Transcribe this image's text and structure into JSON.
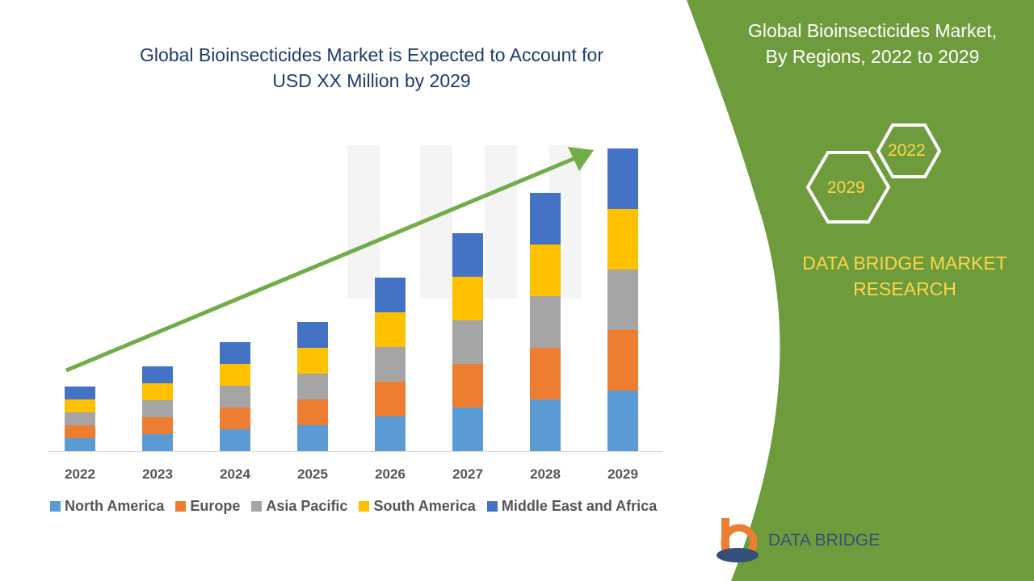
{
  "header": {
    "title_line1": "Global Bioinsecticides Market is Expected to Account for",
    "title_line2": "USD XX Million by 2029"
  },
  "side_panel": {
    "title_line1": "Global Bioinsecticides Market,",
    "title_line2": "By Regions, 2022 to 2029",
    "hex_left": "2029",
    "hex_right": "2022",
    "brand_line1": "DATA BRIDGE MARKET",
    "brand_line2": "RESEARCH",
    "logo_text": "DATA BRIDGE",
    "panel_color": "#6e9c3c"
  },
  "chart_data": {
    "type": "bar",
    "stacked": true,
    "title": "",
    "xlabel": "",
    "ylabel": "",
    "grid": false,
    "legend_placement": "bottom",
    "categories": [
      "2022",
      "2023",
      "2024",
      "2025",
      "2026",
      "2027",
      "2028",
      "2029"
    ],
    "series": [
      {
        "name": "North America",
        "color": "#5b9bd5",
        "values": [
          16,
          21,
          27,
          32,
          43,
          54,
          64,
          75
        ]
      },
      {
        "name": "Europe",
        "color": "#ed7d31",
        "values": [
          16,
          21,
          27,
          32,
          43,
          54,
          64,
          75
        ]
      },
      {
        "name": "Asia Pacific",
        "color": "#a5a5a5",
        "values": [
          16,
          21,
          27,
          32,
          43,
          54,
          64,
          75
        ]
      },
      {
        "name": "South America",
        "color": "#ffc000",
        "values": [
          16,
          21,
          27,
          32,
          43,
          54,
          64,
          75
        ]
      },
      {
        "name": "Middle East and Africa",
        "color": "#4472c4",
        "values": [
          16,
          21,
          27,
          32,
          43,
          54,
          64,
          75
        ]
      }
    ],
    "trend_arrow_color": "#70ad47"
  }
}
